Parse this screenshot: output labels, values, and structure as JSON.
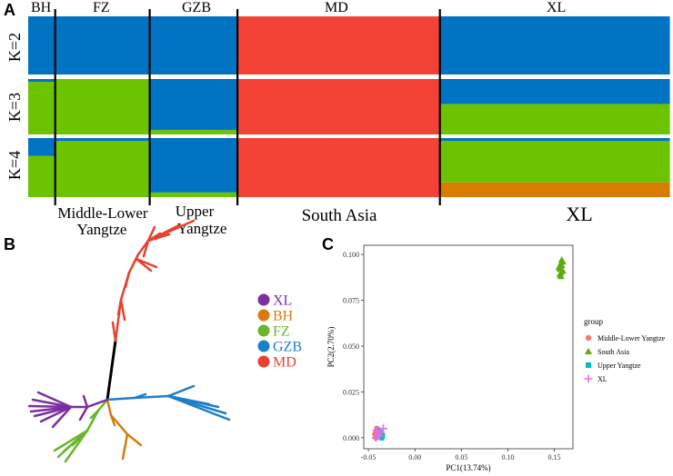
{
  "panel_labels": {
    "a": "A",
    "b": "B",
    "c": "C"
  },
  "panel_a": {
    "pop_labels": [
      "BH",
      "FZ",
      "GZB",
      "MD",
      "XL"
    ],
    "k_labels": [
      "K=2",
      "K=3",
      "K=4"
    ],
    "region_labels": [
      "Middle-Lower",
      "Yangtze",
      "Upper",
      "Yangtze",
      "South Asia",
      "XL"
    ],
    "colors": {
      "blue": "#0073C2",
      "green": "#6CC400",
      "red": "#F44336",
      "orange": "#D87C00"
    },
    "k_rows": [
      {
        "k": 2,
        "pops": [
          {
            "name": "BH",
            "n": 4,
            "blue": 1.0,
            "green": 0.0,
            "red": 0.0,
            "orange": 0.0
          },
          {
            "name": "FZ",
            "n": 14,
            "blue": 1.0,
            "green": 0.0,
            "red": 0.0,
            "orange": 0.0
          },
          {
            "name": "GZB",
            "n": 13,
            "blue": 1.0,
            "green": 0.0,
            "red": 0.0,
            "orange": 0.0
          },
          {
            "name": "MD",
            "n": 30,
            "blue": 0.0,
            "green": 0.0,
            "red": 1.0,
            "orange": 0.0
          },
          {
            "name": "XL",
            "n": 34,
            "blue": 1.0,
            "green": 0.0,
            "red": 0.0,
            "orange": 0.0
          }
        ]
      },
      {
        "k": 3,
        "pops": [
          {
            "name": "BH",
            "n": 4,
            "blue": 0.05,
            "green": 0.95,
            "red": 0.0,
            "orange": 0.0
          },
          {
            "name": "FZ",
            "n": 14,
            "blue": 0.0,
            "green": 1.0,
            "red": 0.0,
            "orange": 0.0
          },
          {
            "name": "GZB",
            "n": 13,
            "blue": 0.92,
            "green": 0.08,
            "red": 0.0,
            "orange": 0.0
          },
          {
            "name": "MD",
            "n": 30,
            "blue": 0.0,
            "green": 0.0,
            "red": 1.0,
            "orange": 0.0
          },
          {
            "name": "XL",
            "n": 34,
            "blue": 0.45,
            "green": 0.55,
            "red": 0.0,
            "orange": 0.0
          }
        ]
      },
      {
        "k": 4,
        "pops": [
          {
            "name": "BH",
            "n": 4,
            "blue": 0.3,
            "green": 0.7,
            "red": 0.0,
            "orange": 0.0
          },
          {
            "name": "FZ",
            "n": 14,
            "blue": 0.05,
            "green": 0.95,
            "red": 0.0,
            "orange": 0.0
          },
          {
            "name": "GZB",
            "n": 13,
            "blue": 0.92,
            "green": 0.08,
            "red": 0.0,
            "orange": 0.0
          },
          {
            "name": "MD",
            "n": 30,
            "blue": 0.0,
            "green": 0.0,
            "red": 1.0,
            "orange": 0.0
          },
          {
            "name": "XL",
            "n": 34,
            "blue": 0.05,
            "green": 0.7,
            "red": 0.0,
            "orange": 0.25
          }
        ]
      }
    ]
  },
  "panel_b": {
    "legend": [
      {
        "label": "XL",
        "color": "#7B2FA0"
      },
      {
        "label": "BH",
        "color": "#D97A0E"
      },
      {
        "label": "FZ",
        "color": "#6AB52A"
      },
      {
        "label": "GZB",
        "color": "#1E7EC8"
      },
      {
        "label": "MD",
        "color": "#E8412F"
      }
    ]
  },
  "chart_data": {
    "type": "scatter",
    "title": "",
    "xlabel": "PC1(13.74%)",
    "ylabel": "PC2(2.70%)",
    "xlim": [
      -0.055,
      0.17
    ],
    "ylim": [
      -0.006,
      0.105
    ],
    "xticks": [
      -0.05,
      0.0,
      0.05,
      0.1,
      0.15
    ],
    "xtick_labels": [
      "-0.05",
      "0.00",
      "0.05",
      "0.10",
      "0.15"
    ],
    "yticks": [
      0.0,
      0.025,
      0.05,
      0.075,
      0.1
    ],
    "ytick_labels": [
      "0.000",
      "0.025",
      "0.050",
      "0.075",
      "0.100"
    ],
    "legend_title": "group",
    "series": [
      {
        "name": "Middle-Lower Yangtze",
        "marker": "circle",
        "color": "#F8766D",
        "x": [
          -0.043,
          -0.041,
          -0.039,
          -0.042,
          -0.04,
          -0.038,
          -0.041
        ],
        "y": [
          0.002,
          0.003,
          0.001,
          0.0,
          0.004,
          0.002,
          0.005
        ]
      },
      {
        "name": "South Asia",
        "marker": "triangle",
        "color": "#5FAA14",
        "x": [
          0.155,
          0.157,
          0.159,
          0.156,
          0.158,
          0.157,
          0.156,
          0.158,
          0.157,
          0.159
        ],
        "y": [
          0.093,
          0.095,
          0.091,
          0.089,
          0.097,
          0.088,
          0.092,
          0.094,
          0.09,
          0.096
        ]
      },
      {
        "name": "Upper Yangtze",
        "marker": "square",
        "color": "#00BFC4",
        "x": [
          -0.04,
          -0.038,
          -0.036,
          -0.039,
          -0.037,
          -0.035
        ],
        "y": [
          0.001,
          0.003,
          0.0,
          0.004,
          0.002,
          0.001
        ]
      },
      {
        "name": "XL",
        "marker": "plus",
        "color": "#E46FE0",
        "x": [
          -0.042,
          -0.04,
          -0.037,
          -0.034,
          -0.041,
          -0.038
        ],
        "y": [
          0.0,
          0.002,
          0.003,
          0.005,
          0.004,
          0.001
        ]
      }
    ]
  }
}
